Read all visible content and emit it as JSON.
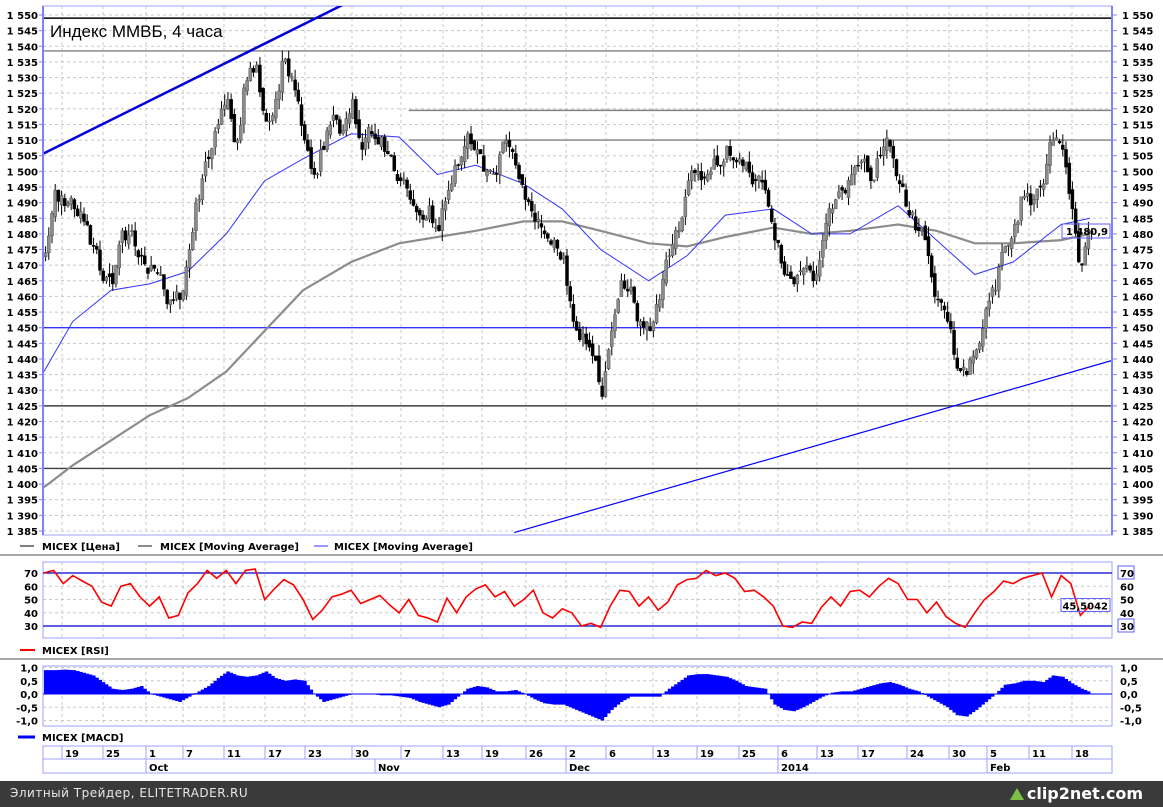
{
  "title": "Индекс ММВБ, 4 часа",
  "legend": {
    "price": "MICEX [Цена]",
    "ma_slow": "MICEX [Moving Average]",
    "ma_fast": "MICEX [Moving Average]",
    "rsi": "MICEX [RSI]",
    "macd": "MICEX [MACD]"
  },
  "last_price_label": "1 480,9",
  "rsi_last_label": "45,5042",
  "footer": {
    "text": "Элитный Трейдер, ELITETRADER.RU",
    "logo": "clip2net.com"
  },
  "colors": {
    "price_up": "#8c8c8c",
    "price_down": "#000000",
    "ma_fast": "#3333ff",
    "ma_slow": "#8c8c8c",
    "rsi": "#ff0000",
    "macd": "#0000ff",
    "level_blue": "#3333ff"
  },
  "chart_data": [
    {
      "type": "line",
      "panel": "price",
      "ylim": [
        1385,
        1550
      ],
      "yticks": [
        "1 550",
        "1 545",
        "1 540",
        "1 535",
        "1 530",
        "1 525",
        "1 520",
        "1 515",
        "1 510",
        "1 505",
        "1 500",
        "1 495",
        "1 490",
        "1 485",
        "1 480",
        "1 475",
        "1 470",
        "1 465",
        "1 460",
        "1 455",
        "1 450",
        "1 445",
        "1 440",
        "1 435",
        "1 430",
        "1 425",
        "1 420",
        "1 415",
        "1 410",
        "1 405",
        "1 400",
        "1 395",
        "1 390",
        "1 385"
      ],
      "grid": true,
      "dates": [
        "2013-09-13",
        "2013-09-16",
        "2013-09-17",
        "2013-09-19",
        "2013-09-20",
        "2013-09-23",
        "2013-09-24",
        "2013-09-25",
        "2013-09-26",
        "2013-09-27",
        "2013-09-30",
        "2013-10-01",
        "2013-10-02",
        "2013-10-03",
        "2013-10-04",
        "2013-10-07",
        "2013-10-08",
        "2013-10-09",
        "2013-10-10",
        "2013-10-11",
        "2013-10-14",
        "2013-10-15",
        "2013-10-16",
        "2013-10-17",
        "2013-10-18",
        "2013-10-21",
        "2013-10-22",
        "2013-10-23",
        "2013-10-24",
        "2013-10-25",
        "2013-10-28",
        "2013-10-29",
        "2013-10-30",
        "2013-10-31",
        "2013-11-01",
        "2013-11-05",
        "2013-11-06",
        "2013-11-07",
        "2013-11-08",
        "2013-11-11",
        "2013-11-12",
        "2013-11-13",
        "2013-11-14",
        "2013-11-15",
        "2013-11-18",
        "2013-11-19",
        "2013-11-20",
        "2013-11-21",
        "2013-11-22",
        "2013-11-25",
        "2013-11-26",
        "2013-11-27",
        "2013-11-28",
        "2013-11-29",
        "2013-12-02",
        "2013-12-03",
        "2013-12-04",
        "2013-12-05",
        "2013-12-06",
        "2013-12-09",
        "2013-12-10",
        "2013-12-11",
        "2013-12-12",
        "2013-12-13",
        "2013-12-16",
        "2013-12-17",
        "2013-12-18",
        "2013-12-19",
        "2013-12-20",
        "2013-12-23",
        "2013-12-24",
        "2013-12-25",
        "2013-12-26",
        "2013-12-27",
        "2013-12-30",
        "2014-01-03",
        "2014-01-06",
        "2014-01-08",
        "2014-01-09",
        "2014-01-10",
        "2014-01-13",
        "2014-01-14",
        "2014-01-15",
        "2014-01-16",
        "2014-01-17",
        "2014-01-20",
        "2014-01-21",
        "2014-01-22",
        "2014-01-23",
        "2014-01-24",
        "2014-01-27",
        "2014-01-28",
        "2014-01-29",
        "2014-01-30",
        "2014-01-31",
        "2014-02-03",
        "2014-02-04",
        "2014-02-05",
        "2014-02-06",
        "2014-02-07",
        "2014-02-10",
        "2014-02-11",
        "2014-02-12",
        "2014-02-13",
        "2014-02-14",
        "2014-02-17",
        "2014-02-18",
        "2014-02-19",
        "2014-02-20",
        "2014-02-21"
      ],
      "close": [
        1474,
        1494,
        1489,
        1488,
        1484,
        1476,
        1465,
        1464,
        1481,
        1481,
        1473,
        1470,
        1467,
        1459,
        1459,
        1475,
        1491,
        1504,
        1515,
        1523,
        1510,
        1529,
        1534,
        1516,
        1523,
        1536,
        1526,
        1510,
        1499,
        1507,
        1518,
        1513,
        1523,
        1507,
        1512,
        1511,
        1505,
        1497,
        1491,
        1486,
        1489,
        1481,
        1494,
        1502,
        1512,
        1507,
        1500,
        1499,
        1510,
        1502,
        1491,
        1484,
        1480,
        1478,
        1473,
        1452,
        1448,
        1441,
        1428,
        1449,
        1465,
        1463,
        1452,
        1449,
        1459,
        1473,
        1481,
        1497,
        1500,
        1499,
        1502,
        1508,
        1503,
        1503,
        1497,
        1494,
        1478,
        1467,
        1464,
        1469,
        1465,
        1478,
        1488,
        1494,
        1499,
        1503,
        1497,
        1505,
        1508,
        1496,
        1486,
        1481,
        1473,
        1459,
        1452,
        1437,
        1435,
        1443,
        1456,
        1462,
        1476,
        1483,
        1492,
        1491,
        1496,
        1510,
        1507,
        1488,
        1470,
        1480.9
      ],
      "ma_fast": {
        "dates": [
          "2013-09-13",
          "2013-09-19",
          "2013-09-25",
          "2013-10-01",
          "2013-10-07",
          "2013-10-11",
          "2013-10-17",
          "2013-10-23",
          "2013-10-30",
          "2013-11-07",
          "2013-11-13",
          "2013-11-19",
          "2013-11-26",
          "2013-12-02",
          "2013-12-06",
          "2013-12-13",
          "2013-12-19",
          "2013-12-25",
          "2014-01-06",
          "2014-01-13",
          "2014-01-17",
          "2014-01-24",
          "2014-01-30",
          "2014-02-05",
          "2014-02-11",
          "2014-02-18",
          "2014-02-21"
        ],
        "values": [
          1436,
          1452,
          1462,
          1464,
          1468,
          1480,
          1497,
          1504,
          1512,
          1511,
          1499,
          1502,
          1496,
          1488,
          1475,
          1465,
          1473,
          1486,
          1488,
          1480,
          1480,
          1489,
          1478,
          1467,
          1471,
          1483,
          1485
        ]
      },
      "ma_slow": {
        "dates": [
          "2013-09-13",
          "2013-09-19",
          "2013-09-25",
          "2013-10-01",
          "2013-10-07",
          "2013-10-11",
          "2013-10-17",
          "2013-10-23",
          "2013-10-30",
          "2013-11-07",
          "2013-11-13",
          "2013-11-19",
          "2013-11-26",
          "2013-12-02",
          "2013-12-06",
          "2013-12-13",
          "2013-12-19",
          "2013-12-25",
          "2014-01-06",
          "2014-01-13",
          "2014-01-17",
          "2014-01-24",
          "2014-01-30",
          "2014-02-05",
          "2014-02-11",
          "2014-02-18",
          "2014-02-21"
        ],
        "values": [
          1399,
          1406,
          1414,
          1422,
          1427.5,
          1436,
          1449,
          1462,
          1471,
          1477,
          1479,
          1481,
          1484,
          1484,
          1481,
          1477,
          1476,
          1479,
          1482,
          1480,
          1481,
          1483,
          1481,
          1477,
          1477,
          1478,
          1480
        ]
      },
      "levels": [
        {
          "value": 1549,
          "color": "#000000"
        },
        {
          "value": 1538.5,
          "color": "#808080"
        },
        {
          "value": 1519.5,
          "color": "#808080",
          "from": "2013-11-08"
        },
        {
          "value": 1510,
          "color": "#808080",
          "from": "2013-11-08"
        },
        {
          "value": 1450,
          "color": "#3333ff"
        },
        {
          "value": 1425,
          "color": "#404040"
        },
        {
          "value": 1405,
          "color": "#404040"
        }
      ],
      "trendlines": [
        {
          "from": [
            "2013-09-13",
            1505.8
          ],
          "to": [
            "2013-10-25",
            1550
          ],
          "color": "#0000dd",
          "thick": true
        },
        {
          "from": [
            "2013-11-25",
            1384.5
          ],
          "to": [
            "2014-02-21",
            1437.5
          ],
          "color": "#0000ff",
          "thick": false
        }
      ]
    },
    {
      "type": "line",
      "panel": "rsi",
      "ylim": [
        21,
        78
      ],
      "yticks": [
        "70",
        "60",
        "50",
        "40",
        "30"
      ],
      "bands": [
        70,
        30
      ],
      "values": [
        70,
        72,
        62,
        68,
        64,
        60,
        48,
        45,
        60,
        62,
        52,
        45,
        52,
        36,
        38,
        55,
        62,
        72,
        66,
        72,
        62,
        72,
        73,
        50,
        58,
        65,
        61,
        50,
        35,
        42,
        52,
        54,
        57,
        47,
        50,
        53,
        46,
        40,
        50,
        38,
        36,
        33,
        51,
        40,
        52,
        58,
        61,
        52,
        56,
        45,
        50,
        57,
        40,
        36,
        43,
        40,
        30,
        32,
        29,
        45,
        57,
        56,
        45,
        52,
        42,
        48,
        61,
        65,
        66,
        72,
        68,
        70,
        66,
        56,
        57,
        52,
        45,
        30,
        29,
        33,
        32,
        44,
        52,
        45,
        56,
        57,
        52,
        60,
        66,
        62,
        50,
        50,
        40,
        48,
        37,
        32,
        29,
        40,
        50,
        56,
        64,
        62,
        66,
        68,
        70,
        52,
        68,
        62,
        38,
        45.5042
      ]
    },
    {
      "type": "bar",
      "panel": "macd",
      "ylim": [
        -1.2,
        1.2
      ],
      "yticks": [
        "1,0",
        "0,5",
        "0,0",
        "-0,5",
        "-1,0"
      ],
      "values": [
        0.9,
        0.9,
        0.92,
        0.9,
        0.8,
        0.7,
        0.45,
        0.2,
        0.15,
        0.2,
        0.3,
        0.0,
        -0.1,
        -0.2,
        -0.3,
        -0.1,
        0.1,
        0.3,
        0.6,
        0.85,
        0.7,
        0.65,
        0.7,
        0.85,
        0.6,
        0.5,
        0.55,
        0.5,
        0.0,
        -0.3,
        -0.2,
        -0.1,
        0.0,
        0.0,
        0.0,
        -0.05,
        -0.05,
        -0.1,
        -0.15,
        -0.3,
        -0.4,
        -0.5,
        -0.4,
        -0.1,
        0.2,
        0.3,
        0.25,
        0.1,
        0.1,
        0.15,
        0.0,
        -0.2,
        -0.35,
        -0.4,
        -0.4,
        -0.55,
        -0.7,
        -0.85,
        -1.0,
        -0.6,
        -0.3,
        -0.1,
        -0.1,
        -0.1,
        -0.1,
        0.2,
        0.45,
        0.7,
        0.75,
        0.75,
        0.7,
        0.65,
        0.5,
        0.3,
        0.25,
        0.2,
        -0.4,
        -0.6,
        -0.65,
        -0.5,
        -0.3,
        -0.1,
        0.05,
        0.1,
        0.1,
        0.2,
        0.3,
        0.4,
        0.45,
        0.35,
        0.2,
        0.1,
        -0.1,
        -0.3,
        -0.5,
        -0.8,
        -0.85,
        -0.6,
        -0.3,
        0.0,
        0.35,
        0.4,
        0.5,
        0.5,
        0.45,
        0.7,
        0.65,
        0.4,
        0.2,
        0.05
      ]
    }
  ],
  "x_axis": {
    "days": [
      {
        "label": "19",
        "date": "2013-09-19"
      },
      {
        "label": "25",
        "date": "2013-09-25"
      },
      {
        "label": "1",
        "date": "2013-10-01"
      },
      {
        "label": "7",
        "date": "2013-10-07"
      },
      {
        "label": "11",
        "date": "2013-10-11"
      },
      {
        "label": "17",
        "date": "2013-10-17"
      },
      {
        "label": "23",
        "date": "2013-10-23"
      },
      {
        "label": "30",
        "date": "2013-10-30"
      },
      {
        "label": "7",
        "date": "2013-11-07"
      },
      {
        "label": "13",
        "date": "2013-11-13"
      },
      {
        "label": "19",
        "date": "2013-11-19"
      },
      {
        "label": "26",
        "date": "2013-11-26"
      },
      {
        "label": "2",
        "date": "2013-12-02"
      },
      {
        "label": "6",
        "date": "2013-12-06"
      },
      {
        "label": "13",
        "date": "2013-12-13"
      },
      {
        "label": "19",
        "date": "2013-12-19"
      },
      {
        "label": "25",
        "date": "2013-12-25"
      },
      {
        "label": "6",
        "date": "2014-01-06"
      },
      {
        "label": "13",
        "date": "2014-01-13"
      },
      {
        "label": "17",
        "date": "2014-01-17"
      },
      {
        "label": "24",
        "date": "2014-01-24"
      },
      {
        "label": "30",
        "date": "2014-01-30"
      },
      {
        "label": "5",
        "date": "2014-02-05"
      },
      {
        "label": "11",
        "date": "2014-02-11"
      },
      {
        "label": "18",
        "date": "2014-02-18"
      }
    ],
    "months": [
      {
        "label": "Oct",
        "date": "2013-10-01"
      },
      {
        "label": "Nov",
        "date": "2013-11-01"
      },
      {
        "label": "Dec",
        "date": "2013-12-02"
      },
      {
        "label": "2014",
        "date": "2014-01-06"
      },
      {
        "label": "Feb",
        "date": "2014-02-05"
      }
    ]
  }
}
